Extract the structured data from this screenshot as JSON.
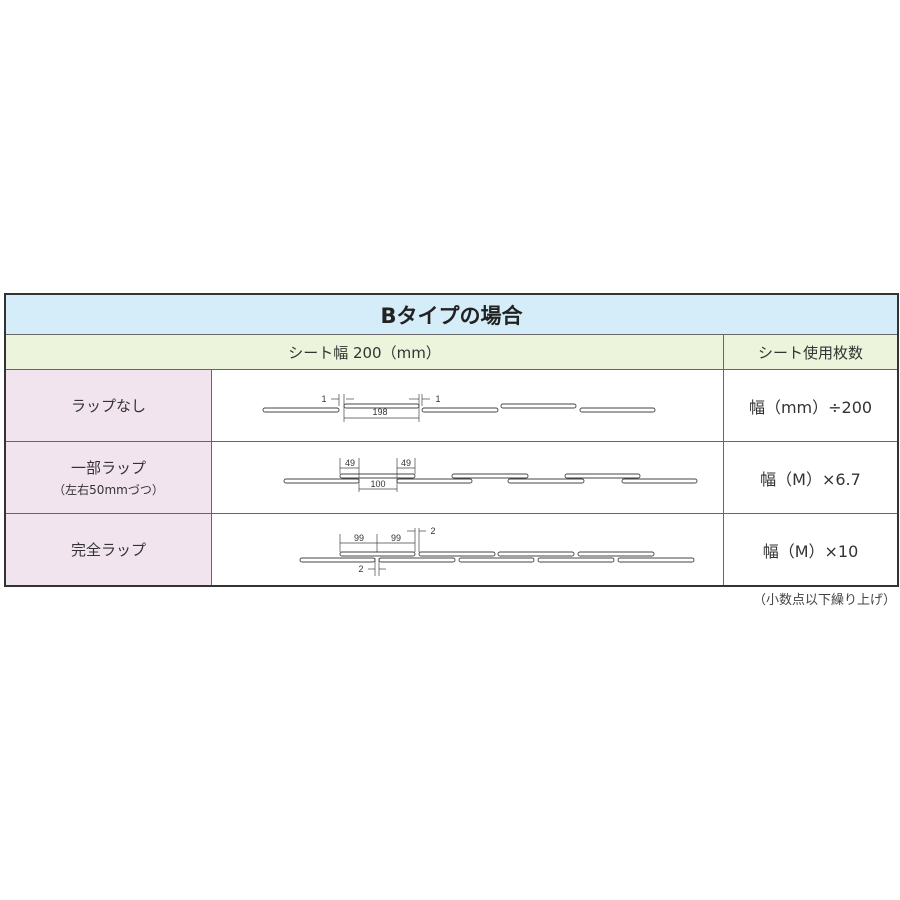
{
  "title": "Bタイプの場合",
  "header": {
    "col_diagram": "シート幅 200（mm）",
    "col_count": "シート使用枚数"
  },
  "rows": [
    {
      "label": "ラップなし",
      "sublabel": "",
      "formula": "幅（mm）÷200",
      "dims": [
        "1",
        "198",
        "1"
      ]
    },
    {
      "label": "一部ラップ",
      "sublabel": "（左右50mmづつ）",
      "formula": "幅（M）×6.7",
      "dims": [
        "49",
        "49",
        "100"
      ]
    },
    {
      "label": "完全ラップ",
      "sublabel": "",
      "formula": "幅（M）×10",
      "dims": [
        "99",
        "99",
        "2",
        "2"
      ]
    }
  ],
  "note": "（小数点以下繰り上げ）",
  "colors": {
    "title_bg": "#d4edf9",
    "header_bg": "#ecf4dc",
    "label_bg": "#f2e4ee"
  }
}
